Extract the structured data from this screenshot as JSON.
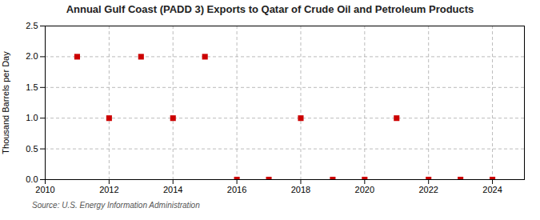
{
  "chart_data": {
    "type": "scatter",
    "title": "Annual Gulf Coast (PADD 3) Exports to Qatar of Crude Oil and Petroleum Products",
    "ylabel": "Thousand Barrels per Day",
    "source": "Source: U.S. Energy Information Administration",
    "x": [
      2011,
      2012,
      2013,
      2014,
      2015,
      2016,
      2017,
      2018,
      2019,
      2020,
      2021,
      2022,
      2023,
      2024
    ],
    "values": [
      2.0,
      1.0,
      2.0,
      1.0,
      2.0,
      0.0,
      0.0,
      1.0,
      0.0,
      0.0,
      1.0,
      0.0,
      0.0,
      0.0
    ],
    "color": "#cc0000",
    "marker": "square",
    "xlim": [
      2010,
      2025
    ],
    "ylim": [
      0.0,
      2.5
    ],
    "xticks": [
      2010,
      2012,
      2014,
      2016,
      2018,
      2020,
      2022,
      2024
    ],
    "yticks": [
      {
        "value": 0.0,
        "label": "0.0"
      },
      0.5,
      {
        "value": 1.0,
        "label": "1.0"
      },
      1.5,
      {
        "value": 2.0,
        "label": "2.0"
      },
      2.5
    ],
    "grid": true
  }
}
